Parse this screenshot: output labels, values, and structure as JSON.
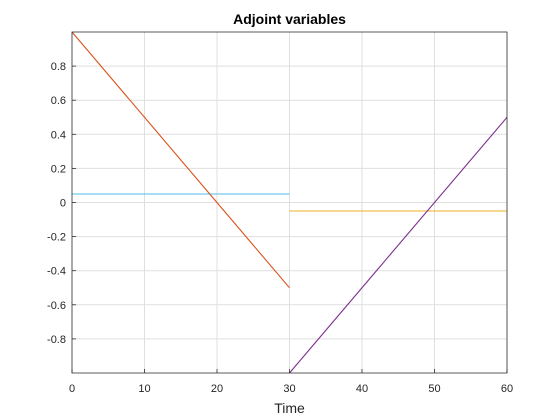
{
  "chart_data": {
    "type": "line",
    "title": "Adjoint variables",
    "xlabel": "Time",
    "ylabel": "",
    "xlim": [
      0,
      60
    ],
    "ylim": [
      -1,
      1
    ],
    "xticks": [
      0,
      10,
      20,
      30,
      40,
      50,
      60
    ],
    "yticks": [
      -0.8,
      -0.6,
      -0.4,
      -0.2,
      0,
      0.2,
      0.4,
      0.6,
      0.8
    ],
    "xtick_labels": [
      "0",
      "10",
      "20",
      "30",
      "40",
      "50",
      "60"
    ],
    "ytick_labels": [
      "-0.8",
      "-0.6",
      "-0.4",
      "-0.2",
      "0",
      "0.2",
      "0.4",
      "0.6",
      "0.8"
    ],
    "grid": true,
    "legend": "none",
    "series": [
      {
        "color": "#4DBEEE",
        "x": [
          0,
          30
        ],
        "y": [
          0.05,
          0.05
        ]
      },
      {
        "color": "#D95319",
        "x": [
          0,
          30
        ],
        "y": [
          1.0,
          -0.5
        ]
      },
      {
        "color": "#EDB120",
        "x": [
          30,
          60
        ],
        "y": [
          -0.05,
          -0.05
        ]
      },
      {
        "color": "#7E2F8E",
        "x": [
          30,
          60
        ],
        "y": [
          -1.0,
          0.5
        ]
      }
    ]
  }
}
